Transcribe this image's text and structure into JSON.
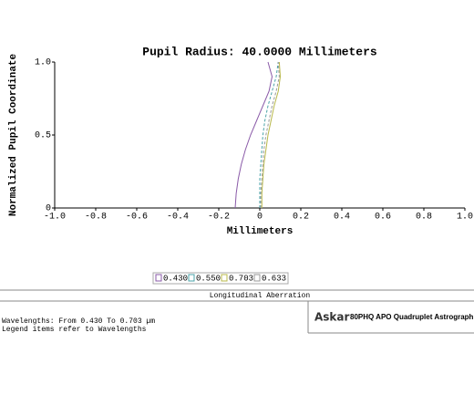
{
  "chart_data": {
    "type": "line",
    "title": "Pupil Radius: 40.0000 Millimeters",
    "x_label": "Millimeters",
    "y_label": "Normalized Pupil Coordinate",
    "xlim": [
      -1,
      1
    ],
    "ylim": [
      0,
      1
    ],
    "xticks": [
      {
        "value": -1,
        "label": "-1.0"
      },
      {
        "value": -0.8,
        "label": "-0.8"
      },
      {
        "value": -0.6,
        "label": "-0.6"
      },
      {
        "value": -0.4,
        "label": "-0.4"
      },
      {
        "value": -0.2,
        "label": "-0.2"
      },
      0,
      0.2,
      0.4,
      0.6,
      0.8,
      {
        "value": 1,
        "label": "1.0"
      }
    ],
    "yticks": [
      0,
      0.5,
      {
        "value": 1,
        "label": "1.0"
      }
    ],
    "series": [
      {
        "name": "0.430",
        "color": "#8a5aa8",
        "x": [
          -0.12,
          -0.115,
          -0.105,
          -0.09,
          -0.07,
          -0.045,
          -0.015,
          0.015,
          0.045,
          0.06,
          0.04
        ],
        "values": [
          0,
          0.1,
          0.2,
          0.3,
          0.4,
          0.5,
          0.6,
          0.7,
          0.8,
          0.9,
          1
        ]
      },
      {
        "name": "0.550",
        "color": "#4aa3a8",
        "x": [
          0,
          0,
          0,
          0.005,
          0.01,
          0.015,
          0.025,
          0.04,
          0.06,
          0.08,
          0.09
        ],
        "values": [
          0,
          0.1,
          0.2,
          0.3,
          0.4,
          0.5,
          0.6,
          0.7,
          0.8,
          0.9,
          1
        ]
      },
      {
        "name": "0.703",
        "color": "#b8b84a",
        "x": [
          0.01,
          0.01,
          0.015,
          0.02,
          0.03,
          0.04,
          0.055,
          0.07,
          0.09,
          0.1,
          0.095
        ],
        "values": [
          0,
          0.1,
          0.2,
          0.3,
          0.4,
          0.5,
          0.6,
          0.7,
          0.8,
          0.9,
          1
        ]
      },
      {
        "name": "0.633",
        "color": "#999999",
        "x": [
          0.005,
          0.005,
          0.01,
          0.015,
          0.02,
          0.03,
          0.045,
          0.06,
          0.08,
          0.095,
          0.09
        ],
        "values": [
          0,
          0.1,
          0.2,
          0.3,
          0.4,
          0.5,
          0.6,
          0.7,
          0.8,
          0.9,
          1
        ]
      }
    ],
    "caption": "Longitudinal Aberration",
    "notes": [
      "Wavelengths: From 0.430 To 0.703 µm",
      "Legend items refer to Wavelengths"
    ],
    "logo": "Askar",
    "lens": "80PHQ APO Quadruplet Astrograph"
  }
}
